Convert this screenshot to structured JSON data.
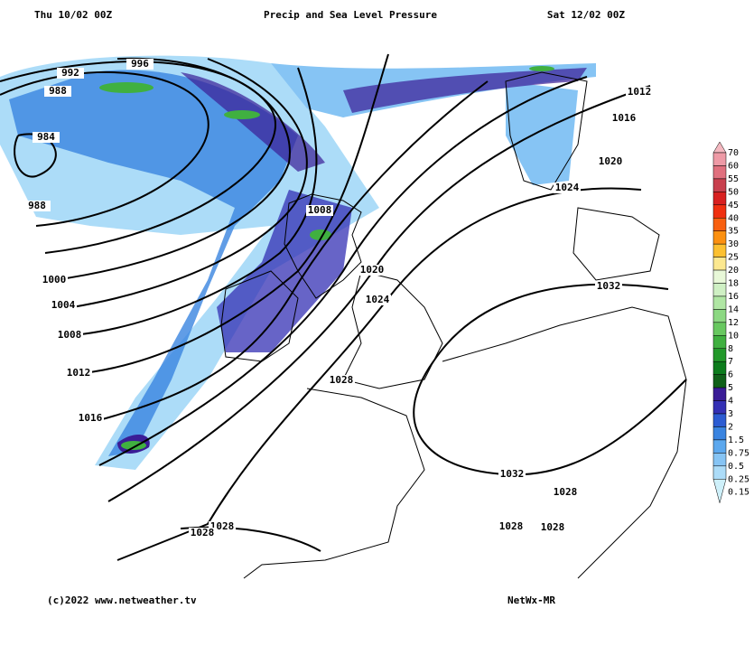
{
  "header": {
    "left": "Thu 10/02 00Z",
    "title": "Precip and Sea Level Pressure",
    "right": "Sat 12/02 00Z"
  },
  "footer": {
    "left": "(c)2022 www.netweather.tv",
    "right": "NetWx-MR"
  },
  "legend": {
    "items": [
      {
        "value": 70,
        "color": "#f4b8c0"
      },
      {
        "value": 60,
        "color": "#ee9aa6"
      },
      {
        "value": 55,
        "color": "#e0707e"
      },
      {
        "value": 50,
        "color": "#c8404e"
      },
      {
        "value": 45,
        "color": "#d82020"
      },
      {
        "value": 40,
        "color": "#f03010"
      },
      {
        "value": 35,
        "color": "#f86010"
      },
      {
        "value": 30,
        "color": "#fc9010"
      },
      {
        "value": 25,
        "color": "#fcc030"
      },
      {
        "value": 20,
        "color": "#fce890"
      },
      {
        "value": 18,
        "color": "#e8f8d8"
      },
      {
        "value": 16,
        "color": "#cff0c4"
      },
      {
        "value": 14,
        "color": "#b0e6a4"
      },
      {
        "value": 12,
        "color": "#8cd882"
      },
      {
        "value": 10,
        "color": "#68c860"
      },
      {
        "value": 8,
        "color": "#40b040"
      },
      {
        "value": 7,
        "color": "#22982a"
      },
      {
        "value": 6,
        "color": "#0c7c1c"
      },
      {
        "value": 5,
        "color": "#106018"
      },
      {
        "value": 4,
        "color": "#3a1c96"
      },
      {
        "value": 3,
        "color": "#3430b4"
      },
      {
        "value": 2,
        "color": "#2c5cd2"
      },
      {
        "value": 1.5,
        "color": "#3a84e0"
      },
      {
        "value": 0.75,
        "color": "#5ca8ee"
      },
      {
        "value": 0.5,
        "color": "#86c4f4"
      },
      {
        "value": 0.25,
        "color": "#acdcf8"
      },
      {
        "value": 0.15,
        "color": "#cef0fa"
      }
    ]
  },
  "isobar_labels": [
    992,
    996,
    988,
    984,
    988,
    1000,
    1004,
    1008,
    1012,
    1016,
    1008,
    1020,
    1024,
    1012,
    1016,
    1020,
    1024,
    1032,
    1028,
    1032,
    1028,
    1028,
    1028,
    1028,
    1028
  ]
}
